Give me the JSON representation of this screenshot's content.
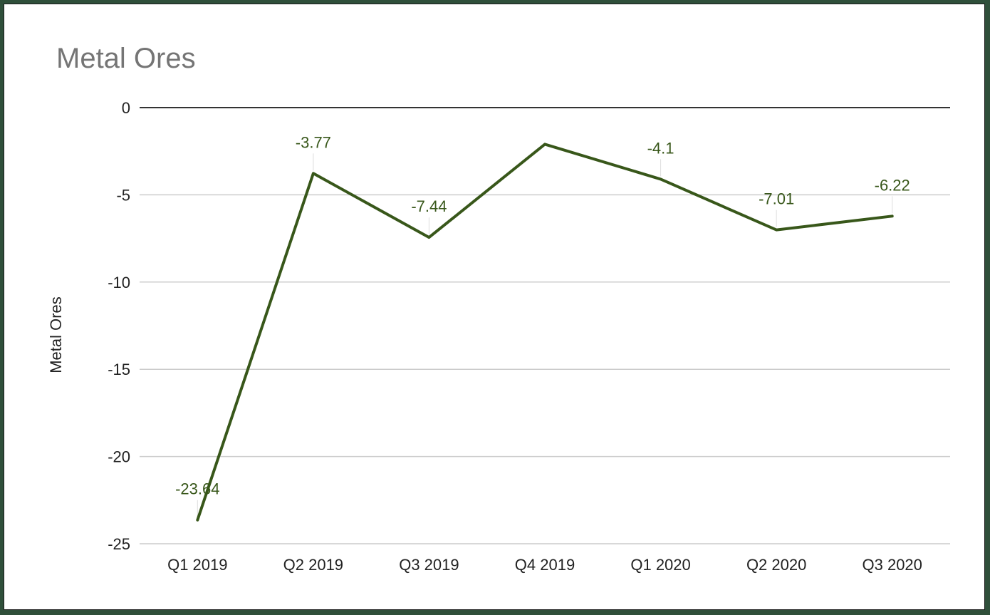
{
  "chart_data": {
    "type": "line",
    "title": "Metal Ores",
    "ylabel": "Metal Ores",
    "xlabel": "",
    "categories": [
      "Q1 2019",
      "Q2 2019",
      "Q3 2019",
      "Q4 2019",
      "Q1 2020",
      "Q2 2020",
      "Q3 2020"
    ],
    "series": [
      {
        "values": [
          -23.64,
          -3.77,
          -7.44,
          -2.1,
          -4.1,
          -7.01,
          -6.22
        ],
        "labels": [
          "-23.64",
          "-3.77",
          "-7.44",
          "",
          "-4.1",
          "-7.01",
          "-6.22"
        ],
        "color": "#38571a"
      }
    ],
    "ylim": [
      -25,
      0
    ],
    "yticks": [
      0,
      -5,
      -10,
      -15,
      -20,
      -25
    ],
    "ytick_labels": [
      "0",
      "-5",
      "-10",
      "-15",
      "-20",
      "-25"
    ],
    "grid": true,
    "legend": "none"
  },
  "colors": {
    "frame": "#2f4f3a",
    "title": "#757575",
    "gridline": "#cccccc",
    "zero_line": "#333333",
    "line": "#38571a",
    "data_label": "#38571a"
  }
}
